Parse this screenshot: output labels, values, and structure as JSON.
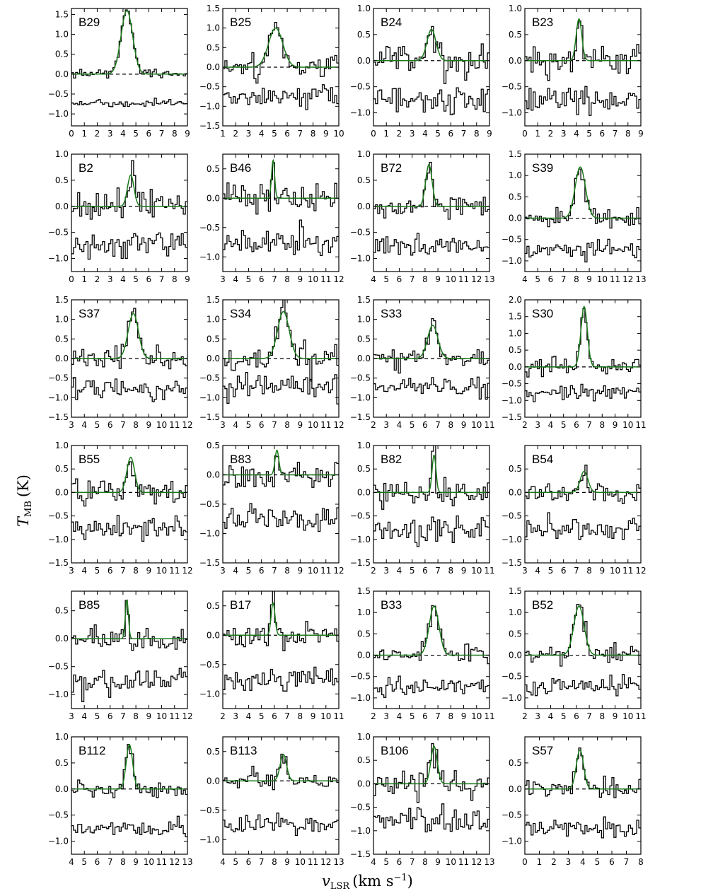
{
  "figure": {
    "xlabel": {
      "main": "v",
      "sub": "LSR",
      "unit": "(km s",
      "sup": "−1",
      "close": ")"
    },
    "ylabel": {
      "main": "T",
      "sub": "MB",
      "unit": "(K)"
    }
  },
  "colors": {
    "data": "#000000",
    "model": "#1a7a1a",
    "zero_line": "#000000"
  },
  "chart_data": [
    {
      "type": "line",
      "label": "B29",
      "xlim": [
        0,
        9
      ],
      "ylim": [
        -1.3,
        1.65
      ],
      "xticks": [
        0,
        1,
        2,
        3,
        4,
        5,
        6,
        7,
        8,
        9
      ],
      "xtick_labels": [
        "0",
        "1",
        "2",
        "3",
        "4",
        "5",
        "6",
        "7",
        "8",
        "9"
      ],
      "yticks": [
        -1.0,
        -0.5,
        0.0,
        0.5,
        1.0,
        1.5
      ],
      "ytick_labels": [
        "−1.0",
        "−0.5",
        "0.0",
        "0.5",
        "1.0",
        "1.5"
      ],
      "peak": 1.6,
      "center": 4.3,
      "width": 0.45,
      "noise": 0.05,
      "residual_offset": -0.75,
      "seed": 1
    },
    {
      "type": "line",
      "label": "B25",
      "xlim": [
        1,
        10
      ],
      "ylim": [
        -1.5,
        1.5
      ],
      "xticks": [
        1,
        2,
        3,
        4,
        5,
        6,
        7,
        8,
        9,
        10
      ],
      "xtick_labels": [
        "1",
        "2",
        "3",
        "4",
        "5",
        "6",
        "7",
        "8",
        "9",
        "10"
      ],
      "yticks": [
        -1.5,
        -1.0,
        -0.5,
        0.0,
        0.5,
        1.0,
        1.5
      ],
      "ytick_labels": [
        "−1.5",
        "−1.0",
        "−0.5",
        "0.0",
        "0.5",
        "1.0",
        "1.5"
      ],
      "peak": 1.0,
      "center": 5.1,
      "width": 0.55,
      "noise": 0.15,
      "residual_offset": -0.75,
      "seed": 2
    },
    {
      "type": "line",
      "label": "B24",
      "xlim": [
        0,
        9
      ],
      "ylim": [
        -1.25,
        1.0
      ],
      "xticks": [
        0,
        1,
        2,
        3,
        4,
        5,
        6,
        7,
        8,
        9
      ],
      "xtick_labels": [
        "0",
        "1",
        "2",
        "3",
        "4",
        "5",
        "6",
        "7",
        "8",
        "9"
      ],
      "yticks": [
        -1.0,
        -0.5,
        0.0,
        0.5,
        1.0
      ],
      "ytick_labels": [
        "−1.0",
        "−0.5",
        "0.0",
        "0.5",
        "1.0"
      ],
      "peak": 0.6,
      "center": 4.5,
      "width": 0.35,
      "noise": 0.15,
      "residual_offset": -0.75,
      "seed": 3
    },
    {
      "type": "line",
      "label": "B23",
      "xlim": [
        0,
        9
      ],
      "ylim": [
        -1.25,
        1.0
      ],
      "xticks": [
        0,
        1,
        2,
        3,
        4,
        5,
        6,
        7,
        8,
        9
      ],
      "xtick_labels": [
        "0",
        "1",
        "2",
        "3",
        "4",
        "5",
        "6",
        "7",
        "8",
        "9"
      ],
      "yticks": [
        -1.0,
        -0.5,
        0.0,
        0.5,
        1.0
      ],
      "ytick_labels": [
        "−1.0",
        "−0.5",
        "0.0",
        "0.5",
        "1.0"
      ],
      "peak": 0.8,
      "center": 4.2,
      "width": 0.22,
      "noise": 0.15,
      "residual_offset": -0.75,
      "seed": 4
    },
    {
      "type": "line",
      "label": "B2",
      "xlim": [
        0,
        9
      ],
      "ylim": [
        -1.25,
        1.0
      ],
      "xticks": [
        0,
        1,
        2,
        3,
        4,
        5,
        6,
        7,
        8,
        9
      ],
      "xtick_labels": [
        "0",
        "1",
        "2",
        "3",
        "4",
        "5",
        "6",
        "7",
        "8",
        "9"
      ],
      "yticks": [
        -1.0,
        -0.5,
        0.0,
        0.5,
        1.0
      ],
      "ytick_labels": [
        "−1.0",
        "−0.5",
        "0.0",
        "0.5",
        "1.0"
      ],
      "peak": 0.6,
      "center": 4.6,
      "width": 0.25,
      "noise": 0.15,
      "residual_offset": -0.75,
      "seed": 5
    },
    {
      "type": "line",
      "label": "B46",
      "xlim": [
        3,
        12
      ],
      "ylim": [
        -1.25,
        0.75
      ],
      "xticks": [
        3,
        4,
        5,
        6,
        7,
        8,
        9,
        10,
        11,
        12
      ],
      "xtick_labels": [
        "3",
        "4",
        "5",
        "6",
        "7",
        "8",
        "9",
        "10",
        "11",
        "12"
      ],
      "yticks": [
        -1.0,
        -0.5,
        0.0,
        0.5
      ],
      "ytick_labels": [
        "−1.0",
        "−0.5",
        "0.0",
        "0.5"
      ],
      "peak": 0.65,
      "center": 6.9,
      "width": 0.12,
      "noise": 0.12,
      "residual_offset": -0.75,
      "seed": 6
    },
    {
      "type": "line",
      "label": "B72",
      "xlim": [
        4,
        13
      ],
      "ylim": [
        -1.25,
        1.0
      ],
      "xticks": [
        4,
        5,
        6,
        7,
        8,
        9,
        10,
        11,
        12,
        13
      ],
      "xtick_labels": [
        "4",
        "5",
        "6",
        "7",
        "8",
        "9",
        "10",
        "11",
        "12",
        "13"
      ],
      "yticks": [
        -1.0,
        -0.5,
        0.0,
        0.5,
        1.0
      ],
      "ytick_labels": [
        "−1.0",
        "−0.5",
        "0.0",
        "0.5",
        "1.0"
      ],
      "peak": 0.8,
      "center": 8.3,
      "width": 0.25,
      "noise": 0.1,
      "residual_offset": -0.75,
      "seed": 7
    },
    {
      "type": "line",
      "label": "S39",
      "xlim": [
        4,
        13
      ],
      "ylim": [
        -1.25,
        1.5
      ],
      "xticks": [
        4,
        5,
        6,
        7,
        8,
        9,
        10,
        11,
        12,
        13
      ],
      "xtick_labels": [
        "4",
        "5",
        "6",
        "7",
        "8",
        "9",
        "10",
        "11",
        "12",
        "13"
      ],
      "yticks": [
        -1.0,
        -0.5,
        0.0,
        0.5,
        1.0,
        1.5
      ],
      "ytick_labels": [
        "−1.0",
        "−0.5",
        "0.0",
        "0.5",
        "1.0",
        "1.5"
      ],
      "peak": 1.2,
      "center": 8.3,
      "width": 0.4,
      "noise": 0.12,
      "residual_offset": -0.75,
      "seed": 8
    },
    {
      "type": "line",
      "label": "S37",
      "xlim": [
        3,
        12
      ],
      "ylim": [
        -1.5,
        1.5
      ],
      "xticks": [
        3,
        4,
        5,
        6,
        7,
        8,
        9,
        10,
        11,
        12
      ],
      "xtick_labels": [
        "3",
        "4",
        "5",
        "6",
        "7",
        "8",
        "9",
        "10",
        "11",
        "12"
      ],
      "yticks": [
        -1.5,
        -1.0,
        -0.5,
        0.0,
        0.5,
        1.0,
        1.5
      ],
      "ytick_labels": [
        "−1.5",
        "−1.0",
        "−0.5",
        "0.0",
        "0.5",
        "1.0",
        "1.5"
      ],
      "peak": 1.15,
      "center": 7.8,
      "width": 0.4,
      "noise": 0.15,
      "residual_offset": -0.75,
      "seed": 9
    },
    {
      "type": "line",
      "label": "S34",
      "xlim": [
        3,
        12
      ],
      "ylim": [
        -1.5,
        1.5
      ],
      "xticks": [
        3,
        4,
        5,
        6,
        7,
        8,
        9,
        10,
        11,
        12
      ],
      "xtick_labels": [
        "3",
        "4",
        "5",
        "6",
        "7",
        "8",
        "9",
        "10",
        "11",
        "12"
      ],
      "yticks": [
        -1.5,
        -1.0,
        -0.5,
        0.0,
        0.5,
        1.0,
        1.5
      ],
      "ytick_labels": [
        "−1.5",
        "−1.0",
        "−0.5",
        "0.0",
        "0.5",
        "1.0",
        "1.5"
      ],
      "peak": 1.2,
      "center": 7.7,
      "width": 0.45,
      "noise": 0.18,
      "residual_offset": -0.75,
      "seed": 10
    },
    {
      "type": "line",
      "label": "S33",
      "xlim": [
        2,
        11
      ],
      "ylim": [
        -1.5,
        1.5
      ],
      "xticks": [
        2,
        3,
        4,
        5,
        6,
        7,
        8,
        9,
        10,
        11
      ],
      "xtick_labels": [
        "2",
        "3",
        "4",
        "5",
        "6",
        "7",
        "8",
        "9",
        "10",
        "11"
      ],
      "yticks": [
        -1.5,
        -1.0,
        -0.5,
        0.0,
        0.5,
        1.0,
        1.5
      ],
      "ytick_labels": [
        "−1.5",
        "−1.0",
        "−0.5",
        "0.0",
        "0.5",
        "1.0",
        "1.5"
      ],
      "peak": 0.85,
      "center": 6.6,
      "width": 0.4,
      "noise": 0.13,
      "residual_offset": -0.75,
      "seed": 11
    },
    {
      "type": "line",
      "label": "S30",
      "xlim": [
        2,
        11
      ],
      "ylim": [
        -1.5,
        2.0
      ],
      "xticks": [
        2,
        3,
        4,
        5,
        6,
        7,
        8,
        9,
        10,
        11
      ],
      "xtick_labels": [
        "2",
        "3",
        "4",
        "5",
        "6",
        "7",
        "8",
        "9",
        "10",
        "11"
      ],
      "yticks": [
        -1.5,
        -1.0,
        -0.5,
        0.0,
        0.5,
        1.0,
        1.5,
        2.0
      ],
      "ytick_labels": [
        "−1.5",
        "−1.0",
        "−0.5",
        "0.0",
        "0.5",
        "1.0",
        "1.5",
        "2.0"
      ],
      "peak": 1.8,
      "center": 6.6,
      "width": 0.25,
      "noise": 0.12,
      "residual_offset": -0.75,
      "seed": 12
    },
    {
      "type": "line",
      "label": "B55",
      "xlim": [
        3,
        12
      ],
      "ylim": [
        -1.5,
        1.0
      ],
      "xticks": [
        3,
        4,
        5,
        6,
        7,
        8,
        9,
        10,
        11,
        12
      ],
      "xtick_labels": [
        "3",
        "4",
        "5",
        "6",
        "7",
        "8",
        "9",
        "10",
        "11",
        "12"
      ],
      "yticks": [
        -1.5,
        -1.0,
        -0.5,
        0.0,
        0.5,
        1.0
      ],
      "ytick_labels": [
        "−1.5",
        "−1.0",
        "−0.5",
        "0.0",
        "0.5",
        "1.0"
      ],
      "peak": 0.75,
      "center": 7.6,
      "width": 0.3,
      "noise": 0.13,
      "residual_offset": -0.75,
      "seed": 13
    },
    {
      "type": "line",
      "label": "B83",
      "xlim": [
        3,
        12
      ],
      "ylim": [
        -1.5,
        0.5
      ],
      "xticks": [
        3,
        4,
        5,
        6,
        7,
        8,
        9,
        10,
        11,
        12
      ],
      "xtick_labels": [
        "3",
        "4",
        "5",
        "6",
        "7",
        "8",
        "9",
        "10",
        "11",
        "12"
      ],
      "yticks": [
        -1.5,
        -1.0,
        -0.5,
        0.0,
        0.5
      ],
      "ytick_labels": [
        "−1.5",
        "−1.0",
        "−0.5",
        "0.0",
        "0.5"
      ],
      "peak": 0.42,
      "center": 7.2,
      "width": 0.15,
      "noise": 0.13,
      "residual_offset": -0.75,
      "seed": 14
    },
    {
      "type": "line",
      "label": "B82",
      "xlim": [
        2,
        11
      ],
      "ylim": [
        -1.5,
        1.0
      ],
      "xticks": [
        2,
        3,
        4,
        5,
        6,
        7,
        8,
        9,
        10,
        11
      ],
      "xtick_labels": [
        "2",
        "3",
        "4",
        "5",
        "6",
        "7",
        "8",
        "9",
        "10",
        "11"
      ],
      "yticks": [
        -1.5,
        -1.0,
        -0.5,
        0.0,
        0.5,
        1.0
      ],
      "ytick_labels": [
        "−1.5",
        "−1.0",
        "−0.5",
        "0.0",
        "0.5",
        "1.0"
      ],
      "peak": 0.8,
      "center": 6.7,
      "width": 0.15,
      "noise": 0.15,
      "residual_offset": -0.75,
      "seed": 15
    },
    {
      "type": "line",
      "label": "B54",
      "xlim": [
        3,
        12
      ],
      "ylim": [
        -1.5,
        1.0
      ],
      "xticks": [
        3,
        4,
        5,
        6,
        7,
        8,
        9,
        10,
        11,
        12
      ],
      "xtick_labels": [
        "3",
        "4",
        "5",
        "6",
        "7",
        "8",
        "9",
        "10",
        "11",
        "12"
      ],
      "yticks": [
        -1.5,
        -1.0,
        -0.5,
        0.0,
        0.5
      ],
      "ytick_labels": [
        "−1.5",
        "−1.0",
        "−0.5",
        "0.0",
        "0.5"
      ],
      "peak": 0.45,
      "center": 7.6,
      "width": 0.3,
      "noise": 0.12,
      "residual_offset": -0.75,
      "seed": 16
    },
    {
      "type": "line",
      "label": "B85",
      "xlim": [
        3,
        12
      ],
      "ylim": [
        -1.25,
        0.85
      ],
      "xticks": [
        3,
        4,
        5,
        6,
        7,
        8,
        9,
        10,
        11,
        12
      ],
      "xtick_labels": [
        "3",
        "4",
        "5",
        "6",
        "7",
        "8",
        "9",
        "10",
        "11",
        "12"
      ],
      "yticks": [
        -1.0,
        -0.5,
        0.0,
        0.5
      ],
      "ytick_labels": [
        "−1.0",
        "−0.5",
        "0.0",
        "0.5"
      ],
      "peak": 0.7,
      "center": 7.3,
      "width": 0.12,
      "noise": 0.12,
      "residual_offset": -0.75,
      "seed": 17
    },
    {
      "type": "line",
      "label": "B17",
      "xlim": [
        2,
        11
      ],
      "ylim": [
        -1.25,
        0.75
      ],
      "xticks": [
        2,
        3,
        4,
        5,
        6,
        7,
        8,
        9,
        10,
        11
      ],
      "xtick_labels": [
        "2",
        "3",
        "4",
        "5",
        "6",
        "7",
        "8",
        "9",
        "10",
        "11"
      ],
      "yticks": [
        -1.0,
        -0.5,
        0.0,
        0.5
      ],
      "ytick_labels": [
        "−1.0",
        "−0.5",
        "0.0",
        "0.5"
      ],
      "peak": 0.55,
      "center": 5.9,
      "width": 0.15,
      "noise": 0.1,
      "residual_offset": -0.75,
      "seed": 18
    },
    {
      "type": "line",
      "label": "B33",
      "xlim": [
        2,
        11
      ],
      "ylim": [
        -1.25,
        1.5
      ],
      "xticks": [
        2,
        3,
        4,
        5,
        6,
        7,
        8,
        9,
        10,
        11
      ],
      "xtick_labels": [
        "2",
        "3",
        "4",
        "5",
        "6",
        "7",
        "8",
        "9",
        "10",
        "11"
      ],
      "yticks": [
        -1.0,
        -0.5,
        0.0,
        0.5,
        1.0,
        1.5
      ],
      "ytick_labels": [
        "−1.0",
        "−0.5",
        "0.0",
        "0.5",
        "1.0",
        "1.5"
      ],
      "peak": 1.15,
      "center": 6.7,
      "width": 0.38,
      "noise": 0.12,
      "residual_offset": -0.75,
      "seed": 19
    },
    {
      "type": "line",
      "label": "B52",
      "xlim": [
        2,
        11
      ],
      "ylim": [
        -1.25,
        1.5
      ],
      "xticks": [
        2,
        3,
        4,
        5,
        6,
        7,
        8,
        9,
        10,
        11
      ],
      "xtick_labels": [
        "2",
        "3",
        "4",
        "5",
        "6",
        "7",
        "8",
        "9",
        "10",
        "11"
      ],
      "yticks": [
        -1.0,
        -0.5,
        0.0,
        0.5,
        1.0,
        1.5
      ],
      "ytick_labels": [
        "−1.0",
        "−0.5",
        "0.0",
        "0.5",
        "1.0",
        "1.5"
      ],
      "peak": 1.15,
      "center": 6.2,
      "width": 0.4,
      "noise": 0.12,
      "residual_offset": -0.75,
      "seed": 20
    },
    {
      "type": "line",
      "label": "B112",
      "xlim": [
        4,
        13
      ],
      "ylim": [
        -1.25,
        1.0
      ],
      "xticks": [
        4,
        5,
        6,
        7,
        8,
        9,
        10,
        11,
        12,
        13
      ],
      "xtick_labels": [
        "4",
        "5",
        "6",
        "7",
        "8",
        "9",
        "10",
        "11",
        "12",
        "13"
      ],
      "yticks": [
        -1.0,
        -0.5,
        0.0,
        0.5,
        1.0
      ],
      "ytick_labels": [
        "−1.0",
        "−0.5",
        "0.0",
        "0.5",
        "1.0"
      ],
      "peak": 0.85,
      "center": 8.5,
      "width": 0.25,
      "noise": 0.08,
      "residual_offset": -0.75,
      "seed": 21
    },
    {
      "type": "line",
      "label": "B113",
      "xlim": [
        4,
        13
      ],
      "ylim": [
        -1.25,
        0.75
      ],
      "xticks": [
        4,
        5,
        6,
        7,
        8,
        9,
        10,
        11,
        12,
        13
      ],
      "xtick_labels": [
        "4",
        "5",
        "6",
        "7",
        "8",
        "9",
        "10",
        "11",
        "12",
        "13"
      ],
      "yticks": [
        -1.0,
        -0.5,
        0.0,
        0.5
      ],
      "ytick_labels": [
        "−1.0",
        "−0.5",
        "0.0",
        "0.5"
      ],
      "peak": 0.45,
      "center": 8.7,
      "width": 0.25,
      "noise": 0.08,
      "residual_offset": -0.75,
      "seed": 22
    },
    {
      "type": "line",
      "label": "B106",
      "xlim": [
        4,
        13
      ],
      "ylim": [
        -1.5,
        1.0
      ],
      "xticks": [
        4,
        5,
        6,
        7,
        8,
        9,
        10,
        11,
        12,
        13
      ],
      "xtick_labels": [
        "4",
        "5",
        "6",
        "7",
        "8",
        "9",
        "10",
        "11",
        "12",
        "13"
      ],
      "yticks": [
        -1.5,
        -1.0,
        -0.5,
        0.0,
        0.5,
        1.0
      ],
      "ytick_labels": [
        "−1.5",
        "−1.0",
        "−0.5",
        "0.0",
        "0.5",
        "1.0"
      ],
      "peak": 0.8,
      "center": 8.7,
      "width": 0.25,
      "noise": 0.15,
      "residual_offset": -0.75,
      "seed": 23
    },
    {
      "type": "line",
      "label": "S57",
      "xlim": [
        0,
        8
      ],
      "ylim": [
        -1.25,
        1.0
      ],
      "xticks": [
        0,
        1,
        2,
        3,
        4,
        5,
        6,
        7,
        8
      ],
      "xtick_labels": [
        "0",
        "1",
        "2",
        "3",
        "4",
        "5",
        "6",
        "7",
        "8"
      ],
      "yticks": [
        -1.0,
        -0.5,
        0.0,
        0.5
      ],
      "ytick_labels": [
        "−1.0",
        "−0.5",
        "0.0",
        "0.5"
      ],
      "peak": 0.75,
      "center": 3.8,
      "width": 0.25,
      "noise": 0.1,
      "residual_offset": -0.75,
      "seed": 24
    }
  ]
}
